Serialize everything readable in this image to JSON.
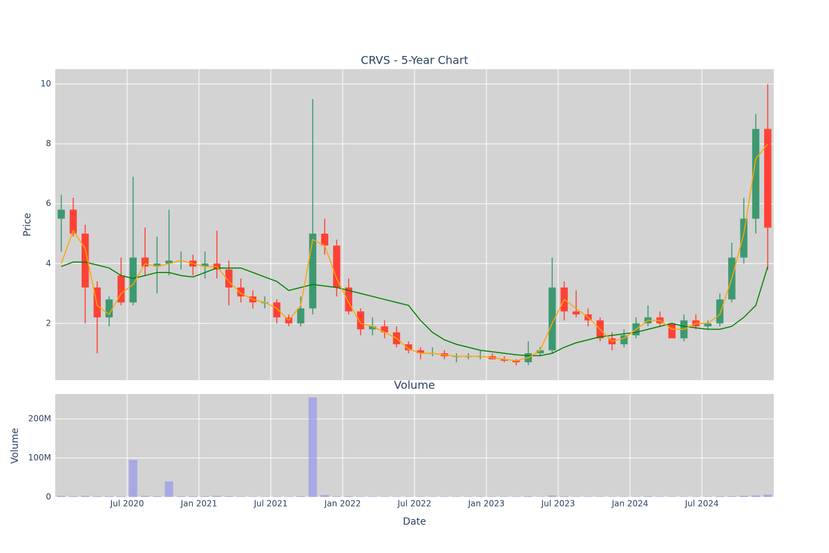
{
  "chart_data": [
    {
      "type": "candlestick",
      "title": "CRVS - 5-Year Chart",
      "y_label": "Price",
      "x": [
        "2020-01",
        "2020-02",
        "2020-03",
        "2020-04",
        "2020-05",
        "2020-06",
        "2020-07",
        "2020-08",
        "2020-09",
        "2020-10",
        "2020-11",
        "2020-12",
        "2021-01",
        "2021-02",
        "2021-03",
        "2021-04",
        "2021-05",
        "2021-06",
        "2021-07",
        "2021-08",
        "2021-09",
        "2021-10",
        "2021-11",
        "2021-12",
        "2022-01",
        "2022-02",
        "2022-03",
        "2022-04",
        "2022-05",
        "2022-06",
        "2022-07",
        "2022-08",
        "2022-09",
        "2022-10",
        "2022-11",
        "2022-12",
        "2023-01",
        "2023-02",
        "2023-03",
        "2023-04",
        "2023-05",
        "2023-06",
        "2023-07",
        "2023-08",
        "2023-09",
        "2023-10",
        "2023-11",
        "2023-12",
        "2024-01",
        "2024-02",
        "2024-03",
        "2024-04",
        "2024-05",
        "2024-06",
        "2024-07",
        "2024-08",
        "2024-09",
        "2024-10",
        "2024-11",
        "2024-12"
      ],
      "open": [
        5.5,
        5.8,
        5.0,
        3.2,
        2.2,
        3.6,
        2.7,
        4.2,
        3.9,
        4.0,
        4.1,
        4.1,
        3.9,
        4.0,
        3.8,
        3.2,
        2.9,
        2.7,
        2.7,
        2.2,
        2.0,
        2.5,
        5.0,
        4.6,
        3.2,
        2.4,
        1.8,
        1.9,
        1.7,
        1.3,
        1.1,
        1.0,
        1.0,
        0.9,
        0.9,
        0.9,
        0.9,
        0.8,
        0.75,
        0.7,
        1.0,
        1.1,
        3.2,
        2.4,
        2.3,
        2.1,
        1.5,
        1.3,
        1.6,
        2.0,
        2.2,
        2.0,
        1.5,
        2.1,
        1.9,
        2.0,
        2.8,
        4.2,
        5.5,
        8.5
      ],
      "high": [
        6.3,
        6.2,
        5.3,
        3.4,
        2.9,
        4.2,
        6.9,
        5.2,
        4.9,
        5.8,
        4.4,
        4.3,
        4.4,
        5.1,
        4.1,
        3.5,
        3.1,
        2.9,
        2.8,
        2.3,
        2.9,
        9.5,
        5.5,
        4.8,
        3.5,
        2.5,
        2.2,
        2.1,
        1.9,
        1.4,
        1.2,
        1.2,
        1.1,
        1.0,
        1.0,
        1.1,
        1.0,
        0.9,
        0.8,
        1.4,
        1.2,
        4.2,
        3.4,
        3.1,
        2.5,
        2.2,
        1.7,
        1.8,
        2.2,
        2.6,
        2.4,
        2.0,
        2.3,
        2.3,
        2.1,
        3.0,
        4.7,
        6.2,
        9.0,
        10.0
      ],
      "low": [
        4.4,
        4.9,
        2.0,
        1.0,
        1.9,
        2.6,
        2.6,
        3.6,
        3.0,
        3.6,
        3.8,
        3.6,
        3.5,
        3.5,
        2.6,
        2.7,
        2.5,
        2.5,
        2.0,
        1.9,
        1.9,
        2.3,
        4.3,
        2.9,
        2.3,
        1.6,
        1.6,
        1.5,
        1.2,
        1.0,
        0.8,
        0.9,
        0.8,
        0.7,
        0.8,
        0.8,
        0.8,
        0.7,
        0.6,
        0.6,
        0.9,
        1.0,
        2.1,
        2.2,
        1.9,
        1.4,
        1.1,
        1.2,
        1.5,
        1.9,
        1.9,
        1.5,
        1.4,
        1.8,
        1.8,
        1.9,
        2.7,
        4.0,
        5.0,
        3.8
      ],
      "close": [
        5.8,
        5.0,
        3.2,
        2.2,
        2.8,
        2.7,
        4.2,
        3.9,
        4.0,
        4.1,
        4.1,
        3.9,
        4.0,
        3.8,
        3.2,
        2.9,
        2.7,
        2.7,
        2.2,
        2.0,
        2.5,
        5.0,
        4.6,
        3.2,
        2.4,
        1.8,
        1.9,
        1.7,
        1.3,
        1.1,
        1.0,
        1.0,
        0.9,
        0.9,
        0.9,
        0.9,
        0.8,
        0.75,
        0.7,
        1.0,
        1.1,
        3.2,
        2.4,
        2.3,
        2.1,
        1.5,
        1.3,
        1.6,
        2.0,
        2.2,
        2.0,
        1.5,
        2.1,
        1.9,
        2.0,
        2.8,
        4.2,
        5.5,
        8.5,
        5.2
      ],
      "ma20": [
        4.0,
        5.1,
        4.5,
        2.6,
        2.3,
        3.0,
        3.3,
        4.0,
        3.9,
        4.0,
        4.1,
        4.0,
        3.9,
        3.9,
        3.4,
        3.0,
        2.8,
        2.7,
        2.5,
        2.1,
        2.6,
        4.8,
        4.6,
        3.5,
        2.7,
        2.0,
        1.9,
        1.7,
        1.5,
        1.15,
        1.0,
        1.0,
        0.95,
        0.9,
        0.9,
        0.9,
        0.85,
        0.8,
        0.75,
        0.85,
        1.1,
        2.0,
        2.8,
        2.5,
        2.2,
        1.8,
        1.4,
        1.5,
        1.8,
        2.1,
        2.1,
        1.8,
        1.8,
        2.0,
        2.0,
        2.3,
        3.5,
        5.0,
        7.5,
        8.0
      ],
      "ma200": [
        3.9,
        4.05,
        4.05,
        3.95,
        3.85,
        3.6,
        3.5,
        3.6,
        3.7,
        3.7,
        3.6,
        3.55,
        3.7,
        3.85,
        3.85,
        3.85,
        3.7,
        3.55,
        3.4,
        3.1,
        3.2,
        3.3,
        3.25,
        3.2,
        3.1,
        3.0,
        2.9,
        2.8,
        2.7,
        2.6,
        2.1,
        1.7,
        1.45,
        1.3,
        1.2,
        1.1,
        1.05,
        1.0,
        0.95,
        0.92,
        0.92,
        1.0,
        1.2,
        1.35,
        1.45,
        1.55,
        1.6,
        1.65,
        1.7,
        1.8,
        1.9,
        2.0,
        1.9,
        1.85,
        1.8,
        1.8,
        1.9,
        2.2,
        2.6,
        3.9
      ],
      "increasing_color": "#3d9970",
      "decreasing_color": "#ff4136",
      "ma20_color": "#ffa500",
      "ma200_color": "#008000",
      "xlim": [
        "2020-01",
        "2025-01"
      ],
      "ylim": [
        0.1,
        10.5
      ],
      "yticks": [
        2,
        4,
        6,
        8,
        10
      ],
      "grid": true
    },
    {
      "type": "bar",
      "title": "Volume",
      "y_label": "Volume",
      "x_label": "Date",
      "color": "#8c8cf0",
      "x": [
        "2020-01",
        "2020-02",
        "2020-03",
        "2020-04",
        "2020-05",
        "2020-06",
        "2020-07",
        "2020-08",
        "2020-09",
        "2020-10",
        "2020-11",
        "2020-12",
        "2021-01",
        "2021-02",
        "2021-03",
        "2021-04",
        "2021-05",
        "2021-06",
        "2021-07",
        "2021-08",
        "2021-09",
        "2021-10",
        "2021-11",
        "2021-12",
        "2022-01",
        "2022-02",
        "2022-03",
        "2022-04",
        "2022-05",
        "2022-06",
        "2022-07",
        "2022-08",
        "2022-09",
        "2022-10",
        "2022-11",
        "2022-12",
        "2023-01",
        "2023-02",
        "2023-03",
        "2023-04",
        "2023-05",
        "2023-06",
        "2023-07",
        "2023-08",
        "2023-09",
        "2023-10",
        "2023-11",
        "2023-12",
        "2024-01",
        "2024-02",
        "2024-03",
        "2024-04",
        "2024-05",
        "2024-06",
        "2024-07",
        "2024-08",
        "2024-09",
        "2024-10",
        "2024-11",
        "2024-12"
      ],
      "values": [
        3000000,
        2000000,
        3000000,
        2000000,
        2000000,
        2000000,
        95000000,
        3000000,
        2000000,
        40000000,
        2000000,
        2000000,
        2000000,
        3000000,
        2000000,
        1000000,
        1000000,
        1000000,
        1000000,
        1000000,
        2000000,
        255000000,
        5000000,
        2000000,
        2000000,
        1000000,
        1000000,
        1000000,
        1000000,
        1000000,
        1000000,
        1000000,
        1000000,
        1000000,
        1000000,
        1000000,
        1000000,
        1000000,
        1000000,
        2000000,
        1000000,
        4000000,
        2000000,
        1000000,
        1000000,
        1000000,
        1000000,
        1000000,
        1000000,
        2000000,
        1000000,
        1000000,
        1000000,
        1000000,
        1000000,
        2000000,
        2000000,
        3000000,
        4000000,
        6000000
      ],
      "xlim": [
        "2020-01",
        "2025-01"
      ],
      "ylim": [
        0,
        264000000
      ],
      "yticks": [
        0,
        {
          "value": 100000000,
          "label": "100M"
        },
        {
          "value": 200000000,
          "label": "200M"
        }
      ],
      "xticks": [
        {
          "value": "2020-07",
          "label": "Jul 2020"
        },
        {
          "value": "2021-01",
          "label": "Jan 2021"
        },
        {
          "value": "2021-07",
          "label": "Jul 2021"
        },
        {
          "value": "2022-01",
          "label": "Jan 2022"
        },
        {
          "value": "2022-07",
          "label": "Jul 2022"
        },
        {
          "value": "2023-01",
          "label": "Jan 2023"
        },
        {
          "value": "2023-07",
          "label": "Jul 2023"
        },
        {
          "value": "2024-01",
          "label": "Jan 2024"
        },
        {
          "value": "2024-07",
          "label": "Jul 2024"
        }
      ],
      "grid": true
    }
  ]
}
